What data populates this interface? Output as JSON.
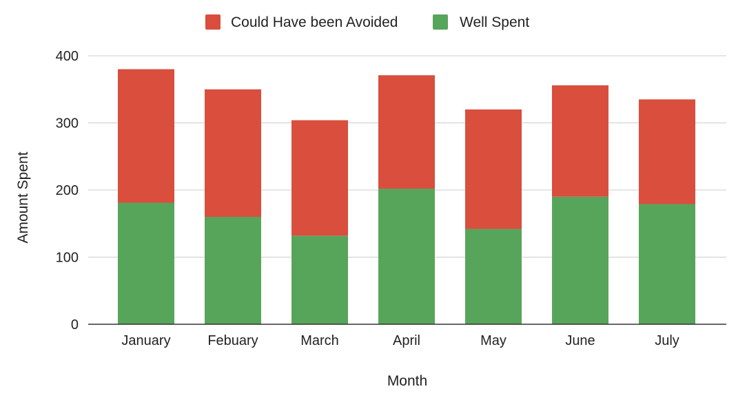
{
  "chart_data": {
    "type": "bar",
    "stacked": true,
    "title": "",
    "xlabel": "Month",
    "ylabel": "Amount Spent",
    "categories": [
      "January",
      "Febuary",
      "March",
      "April",
      "May",
      "June",
      "July"
    ],
    "series": [
      {
        "name": "Well Spent",
        "color": "#57a55a",
        "values": [
          181,
          160,
          132,
          202,
          142,
          190,
          179
        ]
      },
      {
        "name": "Could Have been Avoided",
        "color": "#d94e3d",
        "values": [
          199,
          190,
          172,
          169,
          178,
          166,
          156
        ]
      }
    ],
    "ylim": [
      0,
      400
    ],
    "yticks": [
      "0",
      "100",
      "200",
      "300",
      "400"
    ],
    "grid": true,
    "legend_position": "top-center",
    "legend_order": [
      "Could Have been Avoided",
      "Well Spent"
    ]
  }
}
